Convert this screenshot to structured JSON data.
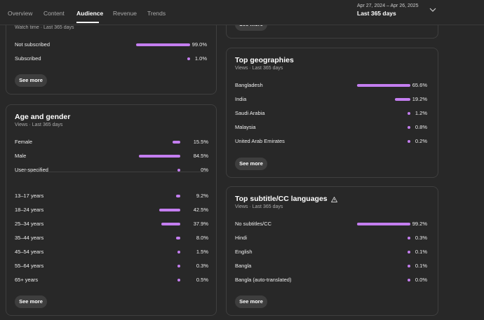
{
  "tabs": [
    {
      "label": "Overview",
      "active": false
    },
    {
      "label": "Content",
      "active": false
    },
    {
      "label": "Audience",
      "active": true
    },
    {
      "label": "Revenue",
      "active": false
    },
    {
      "label": "Trends",
      "active": false
    }
  ],
  "date_range": {
    "dates": "Apr 27, 2024 – Apr 26, 2025",
    "period": "Last 365 days"
  },
  "cards": [
    {
      "subtitle": "Watch time · Last 365 days",
      "groups": [
        [
          {
            "label": "Not subscribed",
            "value": 99.0,
            "value_label": "99.0%"
          },
          {
            "label": "Subscribed",
            "value": 1.0,
            "value_label": "1.0%"
          }
        ]
      ],
      "button": "See more"
    },
    {
      "button": "See more"
    },
    {
      "title": "Age and gender",
      "subtitle": "Views · Last 365 days",
      "groups": [
        [
          {
            "label": "Female",
            "value": 15.5,
            "value_label": "15.5%"
          },
          {
            "label": "Male",
            "value": 84.5,
            "value_label": "84.5%"
          },
          {
            "label": "User-specified",
            "value": 0,
            "value_label": "0%"
          }
        ],
        [
          {
            "label": "13–17 years",
            "value": 9.2,
            "value_label": "9.2%"
          },
          {
            "label": "18–24 years",
            "value": 42.5,
            "value_label": "42.5%"
          },
          {
            "label": "25–34 years",
            "value": 37.9,
            "value_label": "37.9%"
          },
          {
            "label": "35–44 years",
            "value": 8.0,
            "value_label": "8.0%"
          },
          {
            "label": "45–54 years",
            "value": 1.5,
            "value_label": "1.5%"
          },
          {
            "label": "55–64 years",
            "value": 0.3,
            "value_label": "0.3%"
          },
          {
            "label": "65+ years",
            "value": 0.5,
            "value_label": "0.5%"
          }
        ]
      ],
      "button": "See more"
    },
    {
      "title": "Top geographies",
      "subtitle": "Views · Last 365 days",
      "groups": [
        [
          {
            "label": "Bangladesh",
            "value": 65.6,
            "value_label": "65.6%"
          },
          {
            "label": "India",
            "value": 19.2,
            "value_label": "19.2%"
          },
          {
            "label": "Saudi Arabia",
            "value": 1.2,
            "value_label": "1.2%"
          },
          {
            "label": "Malaysia",
            "value": 0.8,
            "value_label": "0.8%"
          },
          {
            "label": "United Arab Emirates",
            "value": 0.2,
            "value_label": "0.2%"
          }
        ]
      ],
      "button": "See more"
    },
    {
      "title": "Top subtitle/CC languages",
      "subtitle": "Views · Last 365 days",
      "groups": [
        [
          {
            "label": "No subtitles/CC",
            "value": 99.2,
            "value_label": "99.2%"
          },
          {
            "label": "Hindi",
            "value": 0.3,
            "value_label": "0.3%"
          },
          {
            "label": "English",
            "value": 0.1,
            "value_label": "0.1%"
          },
          {
            "label": "Bangla",
            "value": 0.1,
            "value_label": "0.1%"
          },
          {
            "label": "Bangla (auto-translated)",
            "value": 0.0,
            "value_label": "0.0%"
          }
        ]
      ],
      "button": "See more",
      "warning": true
    }
  ]
}
